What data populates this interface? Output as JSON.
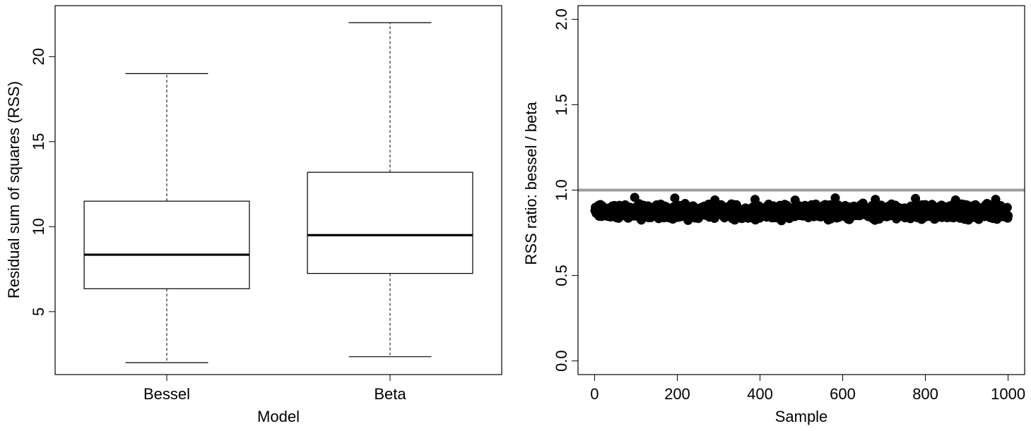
{
  "chart_data": [
    {
      "type": "box",
      "xlabel": "Model",
      "ylabel": "Residual sum of squares (RSS)",
      "ylim": [
        1.3,
        23.0
      ],
      "yticks": [
        5,
        10,
        15,
        20
      ],
      "categories": [
        "Bessel",
        "Beta"
      ],
      "boxes": [
        {
          "name": "Bessel",
          "whisker_low": 2.0,
          "q1": 6.35,
          "median": 8.35,
          "q3": 11.5,
          "whisker_high": 19.0
        },
        {
          "name": "Beta",
          "whisker_low": 2.35,
          "q1": 7.25,
          "median": 9.5,
          "q3": 13.2,
          "whisker_high": 22.0
        }
      ],
      "grid": false
    },
    {
      "type": "scatter",
      "xlabel": "Sample",
      "ylabel": "RSS ratio: bessel / beta",
      "xlim": [
        -40,
        1040
      ],
      "ylim": [
        -0.08,
        2.08
      ],
      "xticks": [
        0,
        200,
        400,
        600,
        800,
        1000
      ],
      "yticks": [
        0.0,
        0.5,
        1.0,
        1.5,
        2.0
      ],
      "ytick_labels": [
        "0.0",
        "0.5",
        "1.0",
        "1.5",
        "2.0"
      ],
      "reference_line": {
        "y": 1.0,
        "color": "#9e9e9e"
      },
      "points": {
        "n": 1000,
        "approx_center": 0.875,
        "approx_min": 0.82,
        "approx_max": 0.96,
        "color": "#000000"
      },
      "grid": false
    }
  ]
}
